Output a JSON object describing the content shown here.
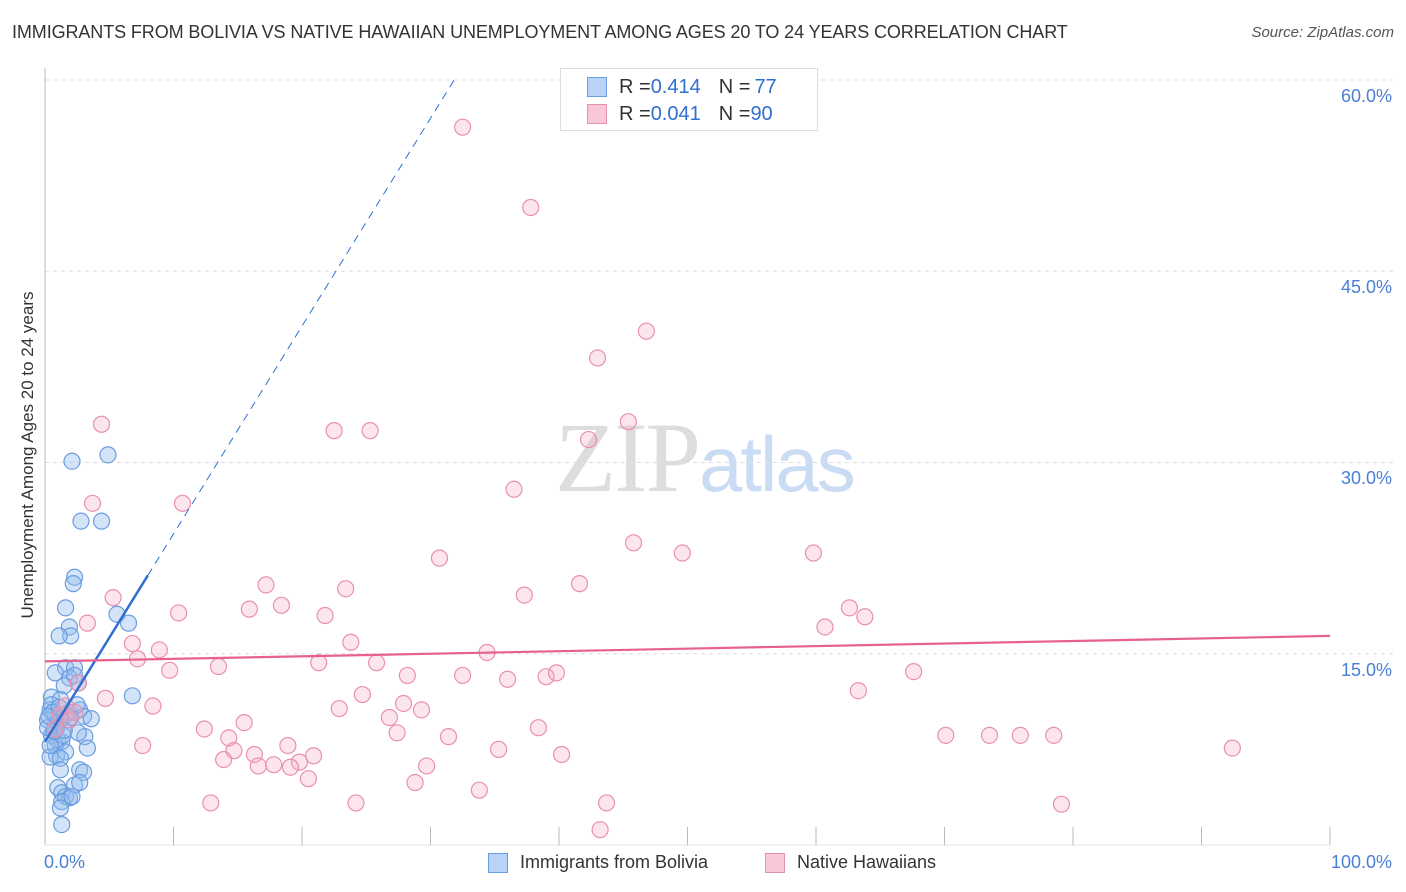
{
  "title": "IMMIGRANTS FROM BOLIVIA VS NATIVE HAWAIIAN UNEMPLOYMENT AMONG AGES 20 TO 24 YEARS CORRELATION CHART",
  "source": "Source: ZipAtlas.com",
  "watermark": {
    "zip": "ZIP",
    "atlas": "atlas"
  },
  "legend": {
    "rows": [
      {
        "r_label": "R = ",
        "r": "0.414",
        "n_label": "N = ",
        "n": "77",
        "color": "#6a9de0"
      },
      {
        "r_label": "R = ",
        "r": "0.041",
        "n_label": "N = ",
        "n": "90",
        "color": "#e990ae"
      }
    ]
  },
  "chart_data": {
    "type": "scatter",
    "xlabel": "",
    "ylabel": "Unemployment Among Ages 20 to 24 years",
    "xlim": [
      0,
      100
    ],
    "ylim": [
      0,
      60
    ],
    "x_tick_labels": [
      "0.0%",
      "100.0%"
    ],
    "y_tick_labels": [
      "15.0%",
      "30.0%",
      "45.0%",
      "60.0%"
    ],
    "y_ticks": [
      15,
      30,
      45,
      60
    ],
    "grid": true,
    "legend_position": "bottom",
    "series": [
      {
        "name": "Immigrants from Bolivia",
        "color": "#6a9de0",
        "trend": {
          "intercept": 8.1,
          "slope": 1.63,
          "solid_to_x": 8
        },
        "points": [
          [
            2.1,
            30.1
          ],
          [
            4.9,
            30.6
          ],
          [
            2.8,
            25.4
          ],
          [
            4.4,
            25.4
          ],
          [
            2.3,
            21.0
          ],
          [
            2.2,
            20.5
          ],
          [
            1.6,
            18.6
          ],
          [
            1.9,
            17.1
          ],
          [
            2.0,
            16.4
          ],
          [
            1.1,
            16.4
          ],
          [
            5.6,
            18.1
          ],
          [
            6.5,
            17.4
          ],
          [
            1.6,
            13.9
          ],
          [
            2.3,
            13.9
          ],
          [
            0.8,
            13.5
          ],
          [
            1.9,
            13.1
          ],
          [
            2.3,
            13.3
          ],
          [
            1.5,
            12.5
          ],
          [
            6.8,
            11.7
          ],
          [
            2.6,
            12.7
          ],
          [
            0.5,
            11.6
          ],
          [
            1.2,
            11.4
          ],
          [
            0.4,
            10.6
          ],
          [
            0.8,
            10.2
          ],
          [
            0.2,
            9.8
          ],
          [
            0.8,
            9.4
          ],
          [
            1.2,
            9.8
          ],
          [
            1.6,
            10.2
          ],
          [
            1.9,
            10.4
          ],
          [
            2.7,
            10.6
          ],
          [
            3.0,
            10.1
          ],
          [
            0.5,
            8.6
          ],
          [
            1.0,
            8.2
          ],
          [
            1.3,
            8.1
          ],
          [
            3.1,
            8.5
          ],
          [
            2.6,
            8.8
          ],
          [
            0.8,
            7.8
          ],
          [
            3.3,
            7.6
          ],
          [
            0.9,
            7.0
          ],
          [
            0.4,
            6.9
          ],
          [
            1.6,
            7.3
          ],
          [
            1.2,
            6.8
          ],
          [
            2.7,
            5.9
          ],
          [
            3.0,
            5.7
          ],
          [
            2.3,
            4.7
          ],
          [
            2.7,
            4.9
          ],
          [
            1.0,
            4.5
          ],
          [
            1.3,
            4.1
          ],
          [
            1.6,
            3.8
          ],
          [
            1.9,
            3.7
          ],
          [
            1.3,
            3.4
          ],
          [
            1.2,
            2.9
          ],
          [
            2.1,
            3.8
          ],
          [
            1.3,
            1.6
          ],
          [
            1.8,
            9.8
          ],
          [
            0.9,
            9.2
          ],
          [
            0.2,
            9.2
          ],
          [
            0.5,
            11.0
          ],
          [
            3.6,
            9.9
          ],
          [
            2.5,
            11.0
          ],
          [
            1.2,
            5.9
          ],
          [
            0.4,
            7.8
          ],
          [
            0.6,
            10.4
          ],
          [
            1.0,
            9.6
          ],
          [
            1.4,
            8.6
          ],
          [
            0.3,
            10.1
          ],
          [
            1.1,
            10.8
          ],
          [
            0.7,
            8.9
          ],
          [
            2.0,
            10.0
          ],
          [
            1.5,
            9.0
          ]
        ]
      },
      {
        "name": "Native Hawaiians",
        "color": "#e990ae",
        "trend": {
          "intercept": 14.4,
          "slope": 0.02
        },
        "points": [
          [
            32.5,
            56.3
          ],
          [
            37.8,
            50.0
          ],
          [
            46.8,
            40.3
          ],
          [
            43.0,
            38.2
          ],
          [
            4.4,
            33.0
          ],
          [
            22.5,
            32.5
          ],
          [
            25.3,
            32.5
          ],
          [
            45.4,
            33.2
          ],
          [
            42.3,
            31.8
          ],
          [
            36.5,
            27.9
          ],
          [
            3.7,
            26.8
          ],
          [
            10.7,
            26.8
          ],
          [
            30.7,
            22.5
          ],
          [
            45.8,
            23.7
          ],
          [
            49.6,
            22.9
          ],
          [
            59.8,
            22.9
          ],
          [
            41.6,
            20.5
          ],
          [
            17.2,
            20.4
          ],
          [
            23.4,
            20.1
          ],
          [
            5.3,
            19.4
          ],
          [
            37.3,
            19.6
          ],
          [
            18.4,
            18.8
          ],
          [
            15.9,
            18.5
          ],
          [
            10.4,
            18.2
          ],
          [
            21.8,
            18.0
          ],
          [
            62.6,
            18.6
          ],
          [
            63.8,
            17.9
          ],
          [
            3.3,
            17.4
          ],
          [
            60.7,
            17.1
          ],
          [
            6.8,
            15.8
          ],
          [
            23.8,
            15.9
          ],
          [
            8.9,
            15.3
          ],
          [
            7.2,
            14.6
          ],
          [
            34.4,
            15.1
          ],
          [
            21.3,
            14.3
          ],
          [
            25.8,
            14.3
          ],
          [
            13.5,
            14.0
          ],
          [
            9.7,
            13.7
          ],
          [
            67.6,
            13.6
          ],
          [
            28.2,
            13.3
          ],
          [
            32.5,
            13.3
          ],
          [
            36.0,
            13.0
          ],
          [
            39.0,
            13.2
          ],
          [
            39.8,
            13.5
          ],
          [
            2.6,
            12.7
          ],
          [
            63.3,
            12.1
          ],
          [
            24.7,
            11.8
          ],
          [
            4.7,
            11.5
          ],
          [
            8.4,
            10.9
          ],
          [
            27.9,
            11.1
          ],
          [
            22.9,
            10.7
          ],
          [
            29.3,
            10.6
          ],
          [
            26.8,
            10.0
          ],
          [
            15.5,
            9.6
          ],
          [
            38.4,
            9.2
          ],
          [
            12.4,
            9.1
          ],
          [
            14.3,
            8.4
          ],
          [
            27.4,
            8.8
          ],
          [
            31.4,
            8.5
          ],
          [
            70.1,
            8.6
          ],
          [
            73.5,
            8.6
          ],
          [
            75.9,
            8.6
          ],
          [
            78.5,
            8.6
          ],
          [
            92.4,
            7.6
          ],
          [
            7.6,
            7.8
          ],
          [
            14.7,
            7.4
          ],
          [
            18.9,
            7.8
          ],
          [
            20.9,
            7.0
          ],
          [
            35.3,
            7.5
          ],
          [
            40.2,
            7.1
          ],
          [
            16.3,
            7.1
          ],
          [
            13.9,
            6.7
          ],
          [
            17.8,
            6.3
          ],
          [
            16.6,
            6.2
          ],
          [
            19.8,
            6.5
          ],
          [
            19.1,
            6.1
          ],
          [
            29.7,
            6.2
          ],
          [
            20.5,
            5.2
          ],
          [
            28.8,
            4.9
          ],
          [
            33.8,
            4.3
          ],
          [
            12.9,
            3.3
          ],
          [
            24.2,
            3.3
          ],
          [
            43.7,
            3.3
          ],
          [
            79.1,
            3.2
          ],
          [
            43.2,
            1.2
          ],
          [
            1.2,
            10.2
          ],
          [
            1.6,
            10.9
          ],
          [
            1.9,
            9.8
          ],
          [
            2.3,
            10.4
          ],
          [
            0.8,
            9.1
          ]
        ]
      }
    ]
  }
}
